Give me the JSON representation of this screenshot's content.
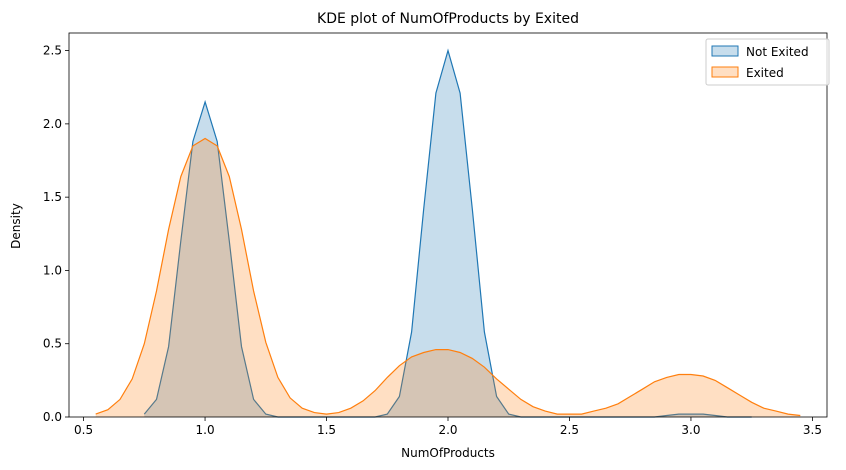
{
  "chart_data": {
    "type": "area",
    "title": "KDE plot of NumOfProducts by Exited",
    "xlabel": "NumOfProducts",
    "ylabel": "Density",
    "xlim": [
      0.44,
      3.56
    ],
    "ylim": [
      0,
      2.62
    ],
    "xticks": [
      0.5,
      1.0,
      1.5,
      2.0,
      2.5,
      3.0,
      3.5
    ],
    "xtick_labels": [
      "0.5",
      "1.0",
      "1.5",
      "2.0",
      "2.5",
      "3.0",
      "3.5"
    ],
    "yticks": [
      0.0,
      0.5,
      1.0,
      1.5,
      2.0,
      2.5
    ],
    "ytick_labels": [
      "0.0",
      "0.5",
      "1.0",
      "1.5",
      "2.0",
      "2.5"
    ],
    "grid": false,
    "legend_position": "top-right",
    "series": [
      {
        "name": "Not Exited",
        "color": "#1f77b4",
        "x": [
          0.75,
          0.8,
          0.85,
          0.9,
          0.95,
          1.0,
          1.05,
          1.1,
          1.15,
          1.2,
          1.25,
          1.3,
          1.35,
          1.4,
          1.45,
          1.5,
          1.55,
          1.6,
          1.65,
          1.7,
          1.75,
          1.8,
          1.85,
          1.9,
          1.95,
          2.0,
          2.05,
          2.1,
          2.15,
          2.2,
          2.25,
          2.3,
          2.35,
          2.4,
          2.45,
          2.5,
          2.55,
          2.6,
          2.65,
          2.7,
          2.75,
          2.8,
          2.85,
          2.9,
          2.95,
          3.0,
          3.05,
          3.1,
          3.15,
          3.2,
          3.25
        ],
        "y": [
          0.02,
          0.12,
          0.48,
          1.2,
          1.88,
          2.15,
          1.88,
          1.2,
          0.48,
          0.12,
          0.02,
          0.0,
          0.0,
          0.0,
          0.0,
          0.0,
          0.0,
          0.0,
          0.0,
          0.0,
          0.02,
          0.14,
          0.58,
          1.42,
          2.21,
          2.5,
          2.21,
          1.42,
          0.58,
          0.14,
          0.02,
          0.0,
          0.0,
          0.0,
          0.0,
          0.0,
          0.0,
          0.0,
          0.0,
          0.0,
          0.0,
          0.0,
          0.0,
          0.01,
          0.02,
          0.02,
          0.02,
          0.01,
          0.0,
          0.0,
          0.0
        ]
      },
      {
        "name": "Exited",
        "color": "#ff7f0e",
        "x": [
          0.55,
          0.6,
          0.65,
          0.7,
          0.75,
          0.8,
          0.85,
          0.9,
          0.95,
          1.0,
          1.05,
          1.1,
          1.15,
          1.2,
          1.25,
          1.3,
          1.35,
          1.4,
          1.45,
          1.5,
          1.55,
          1.6,
          1.65,
          1.7,
          1.75,
          1.8,
          1.85,
          1.9,
          1.95,
          2.0,
          2.05,
          2.1,
          2.15,
          2.2,
          2.25,
          2.3,
          2.35,
          2.4,
          2.45,
          2.5,
          2.55,
          2.6,
          2.65,
          2.7,
          2.75,
          2.8,
          2.85,
          2.9,
          2.95,
          3.0,
          3.05,
          3.1,
          3.15,
          3.2,
          3.25,
          3.3,
          3.35,
          3.4,
          3.45
        ],
        "y": [
          0.02,
          0.05,
          0.12,
          0.26,
          0.5,
          0.86,
          1.28,
          1.64,
          1.85,
          1.9,
          1.85,
          1.64,
          1.28,
          0.86,
          0.51,
          0.27,
          0.13,
          0.06,
          0.03,
          0.02,
          0.03,
          0.06,
          0.11,
          0.18,
          0.27,
          0.35,
          0.41,
          0.44,
          0.46,
          0.46,
          0.44,
          0.4,
          0.34,
          0.26,
          0.19,
          0.12,
          0.07,
          0.04,
          0.02,
          0.02,
          0.02,
          0.04,
          0.06,
          0.09,
          0.14,
          0.19,
          0.24,
          0.27,
          0.29,
          0.29,
          0.28,
          0.25,
          0.2,
          0.15,
          0.1,
          0.06,
          0.04,
          0.02,
          0.01
        ]
      }
    ]
  }
}
